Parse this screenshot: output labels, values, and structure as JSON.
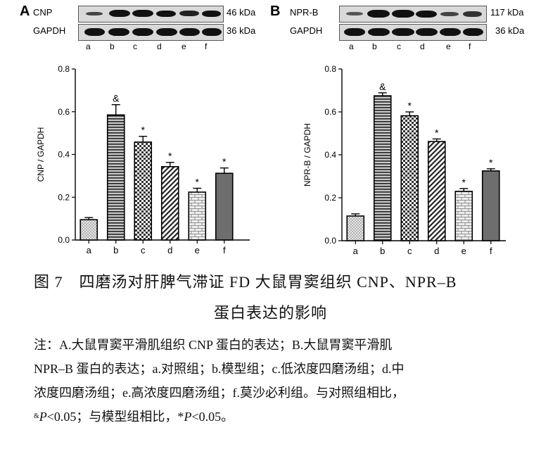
{
  "panels": [
    {
      "letter": "A",
      "protein": "CNP",
      "protein_kda": "46 kDa",
      "loading": "GAPDH",
      "loading_kda": "36 kDa",
      "lanes": [
        "a",
        "b",
        "c",
        "d",
        "e",
        "f"
      ]
    },
    {
      "letter": "B",
      "protein": "NPR-B",
      "protein_kda": "117 kDa",
      "loading": "GAPDH",
      "loading_kda": "36 kDa",
      "lanes": [
        "a",
        "b",
        "c",
        "d",
        "e",
        "f"
      ]
    }
  ],
  "chart_data": [
    {
      "type": "bar",
      "categories": [
        "a",
        "b",
        "c",
        "d",
        "e",
        "f"
      ],
      "values": [
        0.095,
        0.585,
        0.458,
        0.343,
        0.224,
        0.312
      ],
      "errors": [
        0.01,
        0.048,
        0.027,
        0.02,
        0.018,
        0.025
      ],
      "markers": [
        "",
        "&",
        "*",
        "*",
        "*",
        "*"
      ],
      "patterns": [
        "dots",
        "hlines",
        "checker",
        "diag",
        "brick",
        "solid"
      ],
      "ylabel": "CNP / GAPDH",
      "xlabel": "",
      "ylim": [
        0,
        0.8
      ],
      "yticks": [
        "0.0",
        "0.2",
        "0.4",
        "0.6",
        "0.8"
      ]
    },
    {
      "type": "bar",
      "categories": [
        "a",
        "b",
        "c",
        "d",
        "e",
        "f"
      ],
      "values": [
        0.115,
        0.675,
        0.582,
        0.462,
        0.23,
        0.325
      ],
      "errors": [
        0.01,
        0.014,
        0.018,
        0.012,
        0.013,
        0.01
      ],
      "markers": [
        "",
        "&",
        "*",
        "*",
        "*",
        "*"
      ],
      "patterns": [
        "dots",
        "hlines",
        "checker",
        "diag",
        "brick",
        "solid"
      ],
      "ylabel": "NPR-B / GAPDH",
      "xlabel": "",
      "ylim": [
        0,
        0.8
      ],
      "yticks": [
        "0.0",
        "0.2",
        "0.4",
        "0.6",
        "0.8"
      ]
    }
  ],
  "caption": {
    "title_line1": "图 7　四磨汤对肝脾气滞证 FD 大鼠胃窦组织 CNP、NPR–B",
    "title_line2": "蛋白表达的影响",
    "note_line1": "注：A.大鼠胃窦平滑肌组织 CNP 蛋白的表达；B.大鼠胃窦平滑肌",
    "note_line2": "NPR–B 蛋白的表达；a.对照组；b.模型组；c.低浓度四磨汤组；d.中",
    "note_line3": "浓度四磨汤组；e.高浓度四磨汤组；f.莫沙必利组。与对照组相比，",
    "note_line4_pre_sup": "&",
    "note_line4_p1": "P",
    "note_line4_mid": "<0.05；与模型组相比，*",
    "note_line4_p2": "P",
    "note_line4_end": "<0.05。"
  }
}
